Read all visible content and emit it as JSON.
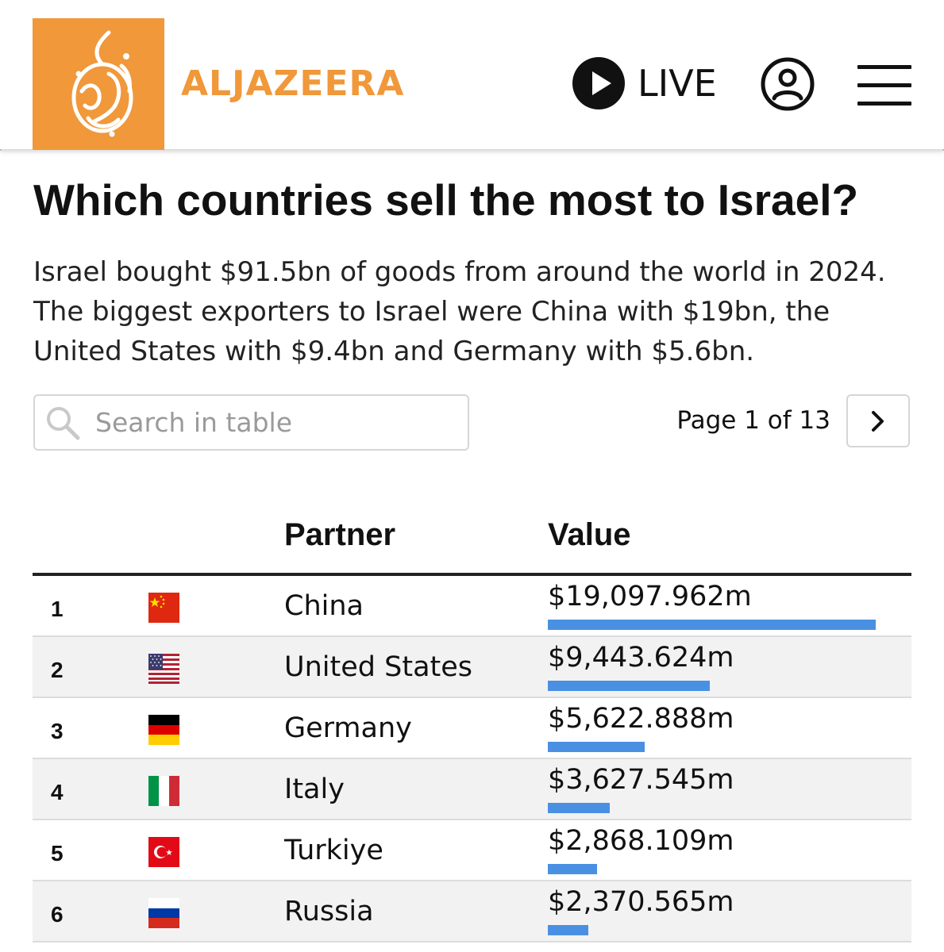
{
  "header": {
    "brand": "ALJAZEERA",
    "live_label": "LIVE",
    "brand_color": "#f0983a"
  },
  "icons": {
    "logo": "aljazeera-calligraphy-logo",
    "live": "play-icon",
    "account": "user-icon",
    "menu": "hamburger-menu-icon",
    "search": "search-icon",
    "next": "chevron-right-icon"
  },
  "article": {
    "title": "Which countries sell the most to Israel?",
    "description_lines": [
      "Israel bought $91.5bn of goods from around the world in 2024.",
      "The biggest exporters to Israel were China with $19bn, the",
      "United States with $9.4bn and Germany with $5.6bn."
    ]
  },
  "table": {
    "search_placeholder": "Search in table",
    "page_info": "Page 1 of 13",
    "columns": [
      "",
      "",
      "Partner",
      "Value"
    ],
    "bar_color": "#4a90e2",
    "max_value_m": 19097.962,
    "rows": [
      {
        "rank": "1",
        "flag": "china-flag",
        "partner": "China",
        "value_text": "$19,097.962m",
        "value_m": 19097.962
      },
      {
        "rank": "2",
        "flag": "usa-flag",
        "partner": "United States",
        "value_text": "$9,443.624m",
        "value_m": 9443.624
      },
      {
        "rank": "3",
        "flag": "germany-flag",
        "partner": "Germany",
        "value_text": "$5,622.888m",
        "value_m": 5622.888
      },
      {
        "rank": "4",
        "flag": "italy-flag",
        "partner": "Italy",
        "value_text": "$3,627.545m",
        "value_m": 3627.545
      },
      {
        "rank": "5",
        "flag": "turkiye-flag",
        "partner": "Turkiye",
        "value_text": "$2,868.109m",
        "value_m": 2868.109
      },
      {
        "rank": "6",
        "flag": "russia-flag",
        "partner": "Russia",
        "value_text": "$2,370.565m",
        "value_m": 2370.565
      }
    ]
  }
}
